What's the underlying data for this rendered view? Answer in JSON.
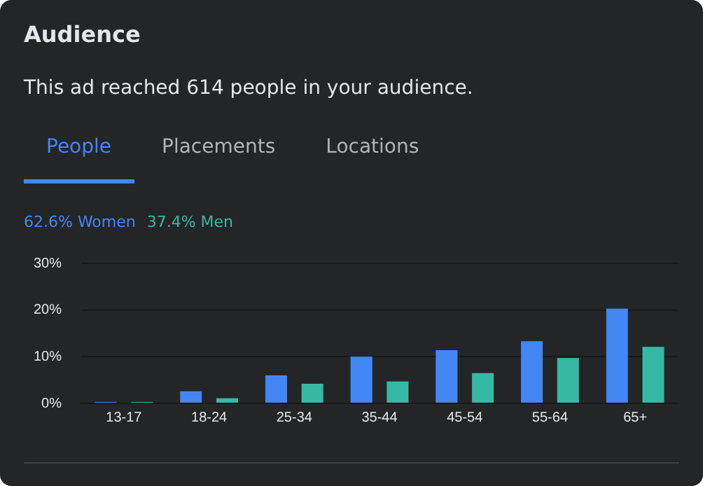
{
  "chart_data": {
    "type": "bar",
    "title": "Audience",
    "subtitle": "This ad reached 614 people in your audience.",
    "annotations": [
      "People",
      "Placements",
      "Locations"
    ],
    "categories": [
      "13-17",
      "18-24",
      "25-34",
      "35-44",
      "45-54",
      "55-64",
      "65+"
    ],
    "series": [
      {
        "name": "62.6% Women",
        "color": "#4287f5",
        "values": [
          0.3,
          2.6,
          6.0,
          10.0,
          11.4,
          13.3,
          20.3
        ]
      },
      {
        "name": "37.4% Men",
        "color": "#36b9a4",
        "values": [
          0.3,
          1.1,
          4.2,
          4.7,
          6.5,
          9.7,
          12.1
        ]
      }
    ],
    "ylim": [
      0,
      30
    ],
    "yticks": [
      {
        "value": 0,
        "label": "0%"
      },
      {
        "value": 10,
        "label": "10%"
      },
      {
        "value": 20,
        "label": "20%"
      },
      {
        "value": 30,
        "label": "30%"
      }
    ],
    "grid": "y",
    "legend": "top left"
  }
}
